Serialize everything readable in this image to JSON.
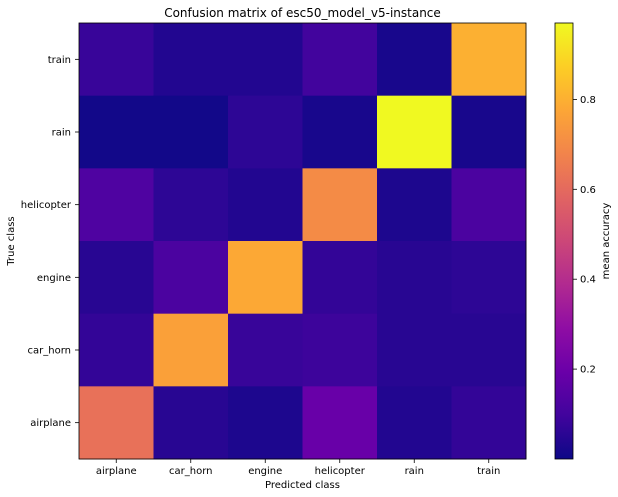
{
  "chart_data": {
    "type": "heatmap",
    "title": "Confusion matrix of esc50_model_v5-instance",
    "xlabel": "Predicted class",
    "ylabel": "True class",
    "x_categories": [
      "airplane",
      "car_horn",
      "engine",
      "helicopter",
      "rain",
      "train"
    ],
    "y_categories_top_to_bottom": [
      "train",
      "rain",
      "helicopter",
      "engine",
      "car_horn",
      "airplane"
    ],
    "values_top_to_bottom": [
      [
        0.08,
        0.04,
        0.04,
        0.1,
        0.02,
        0.8
      ],
      [
        0.01,
        0.01,
        0.06,
        0.02,
        0.97,
        0.02
      ],
      [
        0.13,
        0.06,
        0.04,
        0.7,
        0.03,
        0.12
      ],
      [
        0.05,
        0.12,
        0.78,
        0.07,
        0.05,
        0.06
      ],
      [
        0.07,
        0.76,
        0.08,
        0.09,
        0.05,
        0.05
      ],
      [
        0.62,
        0.05,
        0.03,
        0.19,
        0.04,
        0.07
      ]
    ],
    "colormap": "plasma",
    "colorbar": {
      "label": "mean accuracy",
      "range": [
        0.0,
        0.97
      ],
      "ticks": [
        0.2,
        0.4,
        0.6,
        0.8
      ],
      "tick_labels": [
        "0.2",
        "0.4",
        "0.6",
        "0.8"
      ]
    },
    "grid": false,
    "legend": "colorbar-right"
  }
}
